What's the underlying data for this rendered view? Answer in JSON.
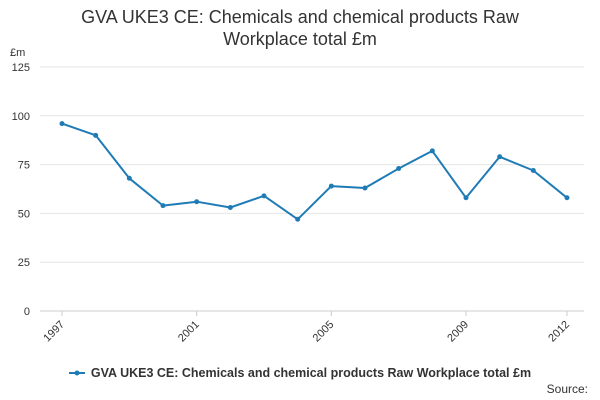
{
  "chart_data": {
    "type": "line",
    "title_lines": [
      "GVA UKE3 CE: Chemicals and chemical products Raw",
      "Workplace total £m"
    ],
    "ylabel": "£m",
    "xlabel": "",
    "x": [
      1997,
      1998,
      1999,
      2000,
      2001,
      2002,
      2003,
      2004,
      2005,
      2006,
      2007,
      2008,
      2009,
      2010,
      2011,
      2012
    ],
    "x_tick_labels": [
      "1997",
      "2001",
      "2005",
      "2009",
      "2012"
    ],
    "x_tick_values": [
      1997,
      2001,
      2005,
      2009,
      2012
    ],
    "ylim": [
      0,
      125
    ],
    "y_ticks": [
      0,
      25,
      50,
      75,
      100,
      125
    ],
    "grid": true,
    "legend_position": "bottom",
    "series": [
      {
        "name": "GVA UKE3 CE: Chemicals and chemical products Raw Workplace total £m",
        "color": "#1f7bb6",
        "values": [
          96,
          90,
          68,
          54,
          56,
          53,
          59,
          47,
          64,
          63,
          73,
          82,
          58,
          79,
          72,
          58
        ]
      }
    ]
  },
  "footer": {
    "source": "Source:"
  }
}
